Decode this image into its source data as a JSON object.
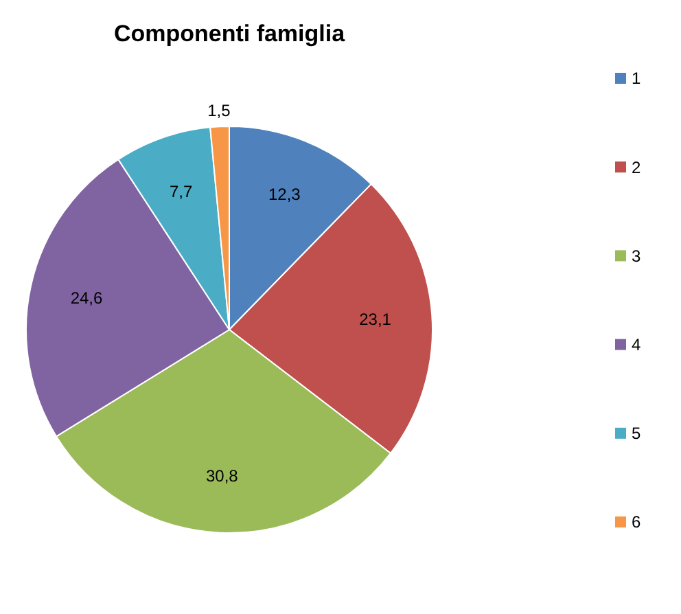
{
  "chart_data": {
    "type": "pie",
    "title": "Componenti famiglia",
    "categories": [
      "1",
      "2",
      "3",
      "4",
      "5",
      "6"
    ],
    "values": [
      12.3,
      23.1,
      30.8,
      24.6,
      7.7,
      1.5
    ],
    "value_labels": [
      "12,3",
      "23,1",
      "30,8",
      "24,6",
      "7,7",
      "1,5"
    ],
    "colors": [
      "#4f81bd",
      "#c0504d",
      "#9bbb59",
      "#8064a2",
      "#4bacc6",
      "#f79646"
    ],
    "legend": "right"
  }
}
